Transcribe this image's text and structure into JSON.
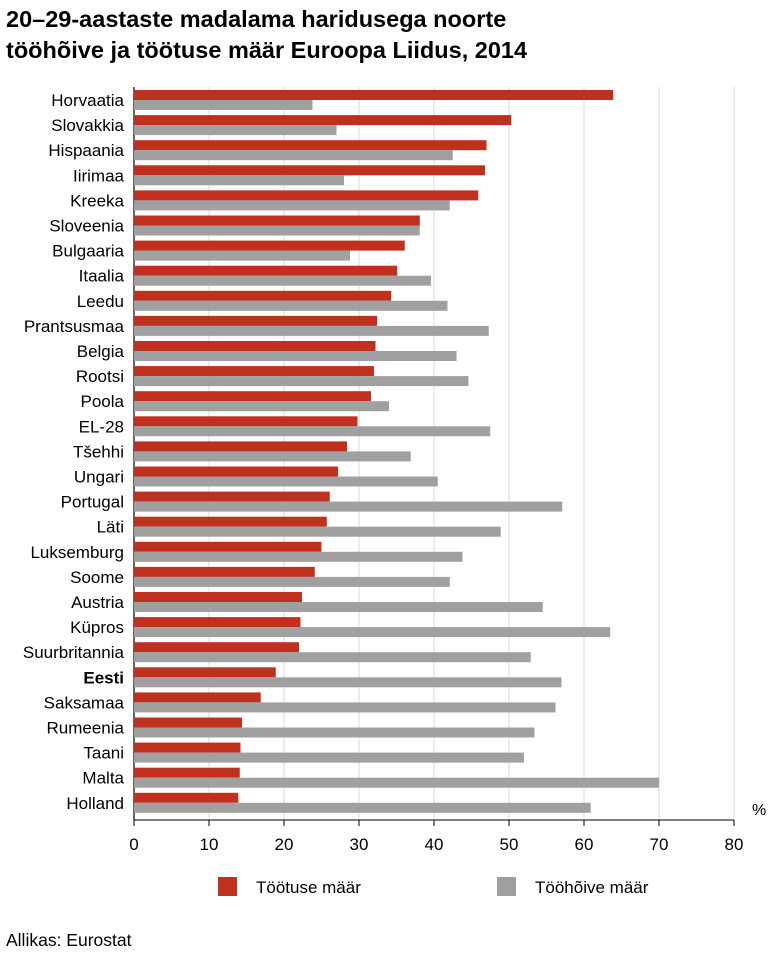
{
  "chart_data": {
    "type": "bar",
    "orientation": "horizontal",
    "title_line1": "20–29-aastaste madalama haridusega noorte",
    "title_line2": "tööhõive ja töötuse määr Euroopa Liidus, 2014",
    "xlabel": "",
    "ylabel": "",
    "unit": "%",
    "xlim": [
      0,
      80
    ],
    "xticks": [
      "0",
      "10",
      "20",
      "30",
      "40",
      "50",
      "60",
      "70",
      "80"
    ],
    "grid": true,
    "legend_position": "bottom",
    "highlight_category": "Eesti",
    "categories": [
      "Horvaatia",
      "Slovakkia",
      "Hispaania",
      "Iirimaa",
      "Kreeka",
      "Sloveenia",
      "Bulgaaria",
      "Itaalia",
      "Leedu",
      "Prantsusmaa",
      "Belgia",
      "Rootsi",
      "Poola",
      "EL-28",
      "Tšehhi",
      "Ungari",
      "Portugal",
      "Läti",
      "Luksemburg",
      "Soome",
      "Austria",
      "Küpros",
      "Suurbritannia",
      "Eesti",
      "Saksamaa",
      "Rumeenia",
      "Taani",
      "Malta",
      "Holland"
    ],
    "series": [
      {
        "name": "Töötuse määr",
        "color": "#c0301f",
        "values": [
          63.9,
          50.3,
          47.0,
          46.8,
          45.9,
          38.1,
          36.1,
          35.1,
          34.3,
          32.4,
          32.2,
          32.0,
          31.6,
          29.8,
          28.4,
          27.2,
          26.1,
          25.7,
          25.0,
          24.1,
          22.4,
          22.2,
          22.0,
          18.9,
          16.9,
          14.4,
          14.2,
          14.1,
          13.9
        ]
      },
      {
        "name": "Tööhõive määr",
        "color": "#a0a0a0",
        "values": [
          23.8,
          27.0,
          42.5,
          28.0,
          42.1,
          38.1,
          28.8,
          39.6,
          41.8,
          47.3,
          43.0,
          44.6,
          34.0,
          47.5,
          36.9,
          40.5,
          57.1,
          48.9,
          43.8,
          42.1,
          54.5,
          63.5,
          52.9,
          57.0,
          56.2,
          53.4,
          52.0,
          70.0,
          60.9
        ]
      }
    ]
  },
  "source": "Allikas: Eurostat"
}
